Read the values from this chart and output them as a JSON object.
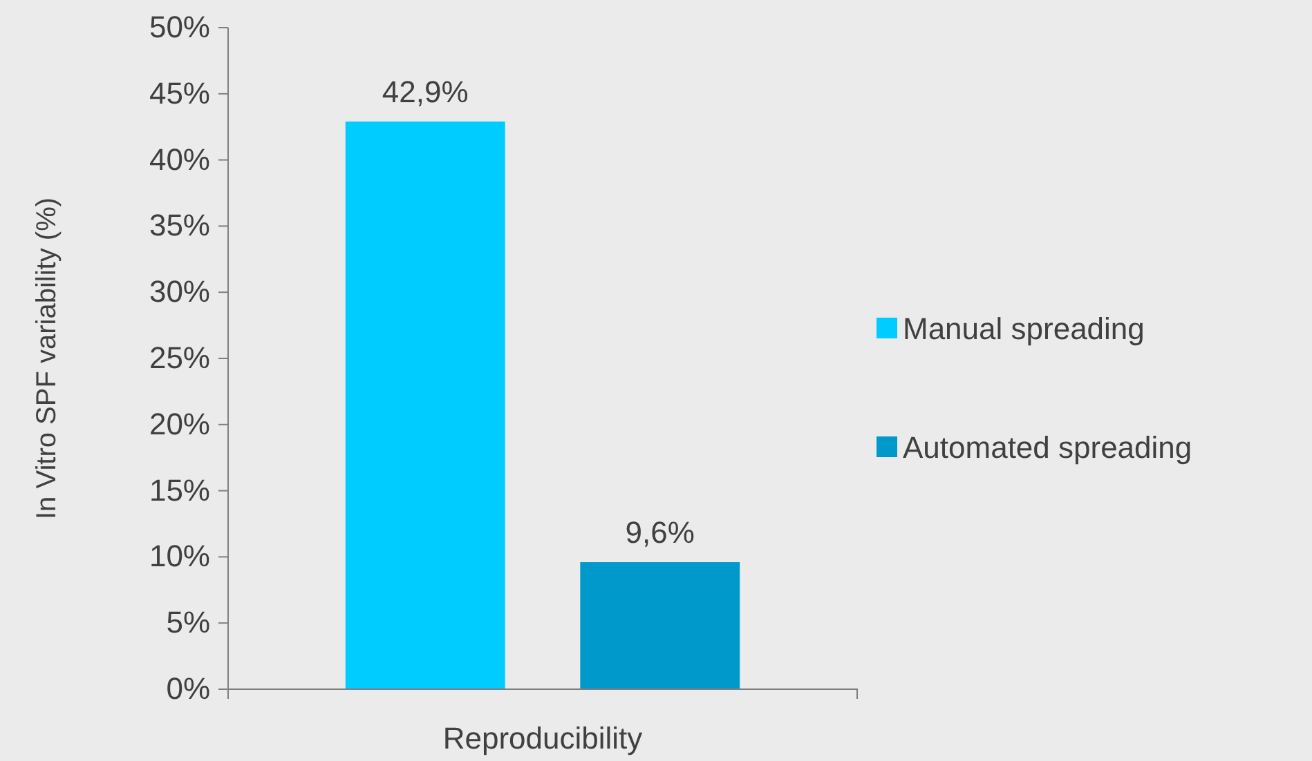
{
  "chart_data": {
    "type": "bar",
    "xlabel": "Reproducibility",
    "ylabel": "In Vitro SPF variability (%)",
    "categories": [
      null,
      null
    ],
    "series": [
      {
        "name": "Manual spreading",
        "color": "#00ccff",
        "values": [
          42.9,
          null
        ],
        "value_labels": [
          "42,9%",
          null
        ]
      },
      {
        "name": "Automated spreading",
        "color": "#0099cc",
        "values": [
          null,
          9.6
        ],
        "value_labels": [
          null,
          "9,6%"
        ]
      }
    ],
    "ylim": [
      0,
      50
    ],
    "yticks": [
      {
        "value": 0,
        "label": "0%"
      },
      {
        "value": 5,
        "label": "5%"
      },
      {
        "value": 10,
        "label": "10%"
      },
      {
        "value": 15,
        "label": "15%"
      },
      {
        "value": 20,
        "label": "20%"
      },
      {
        "value": 25,
        "label": "25%"
      },
      {
        "value": 30,
        "label": "30%"
      },
      {
        "value": 35,
        "label": "35%"
      },
      {
        "value": 40,
        "label": "40%"
      },
      {
        "value": 45,
        "label": "45%"
      },
      {
        "value": 50,
        "label": "50%"
      }
    ],
    "grid": false,
    "legend": "right"
  }
}
